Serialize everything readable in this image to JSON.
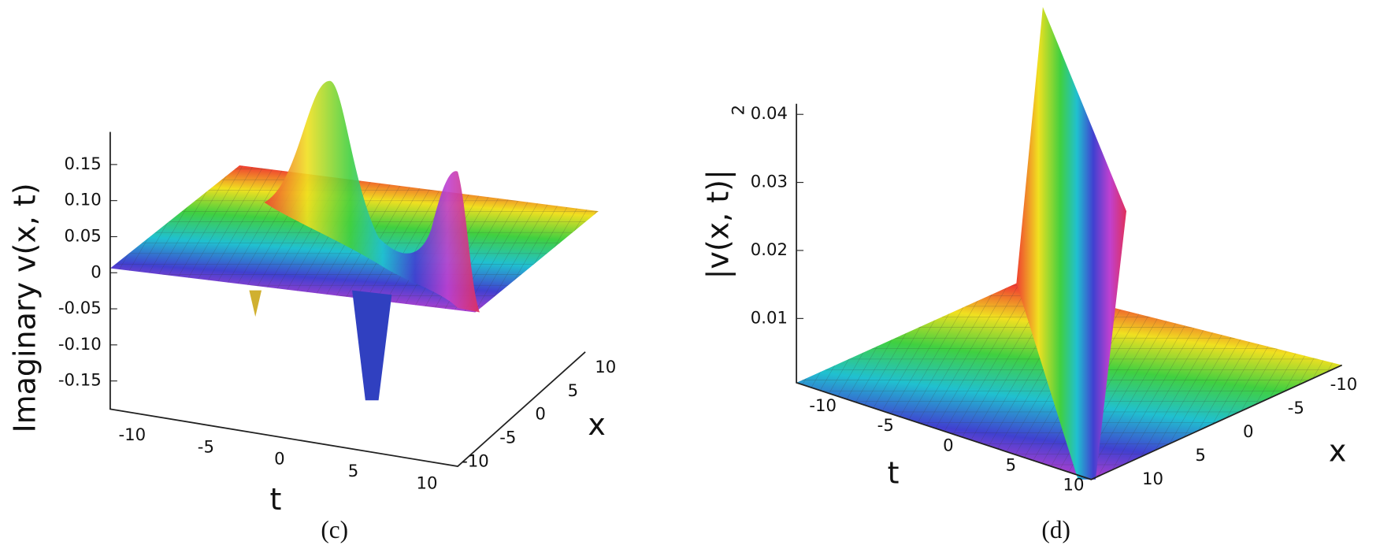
{
  "panels": [
    {
      "label": "(c)",
      "z_axis_label": "Imaginary v(x, t)",
      "z_ticks": [
        "0.15",
        "0.10",
        "0.05",
        "0",
        "-0.05",
        "-0.10",
        "-0.15"
      ],
      "t_axis_label": "t",
      "t_ticks": [
        "-10",
        "-5",
        "0",
        "5",
        "10"
      ],
      "x_axis_label": "x",
      "x_ticks": [
        "-10",
        "-5",
        "0",
        "5",
        "10"
      ]
    },
    {
      "label": "(d)",
      "z_axis_label": "|v(x, t)|",
      "z_axis_exponent": "2",
      "z_ticks": [
        "0.04",
        "0.03",
        "0.02",
        "0.01"
      ],
      "t_axis_label": "t",
      "t_ticks": [
        "-10",
        "-5",
        "0",
        "5",
        "10"
      ],
      "x_axis_label": "x",
      "x_ticks": [
        "10",
        "5",
        "0",
        "-5",
        "-10"
      ]
    }
  ]
}
